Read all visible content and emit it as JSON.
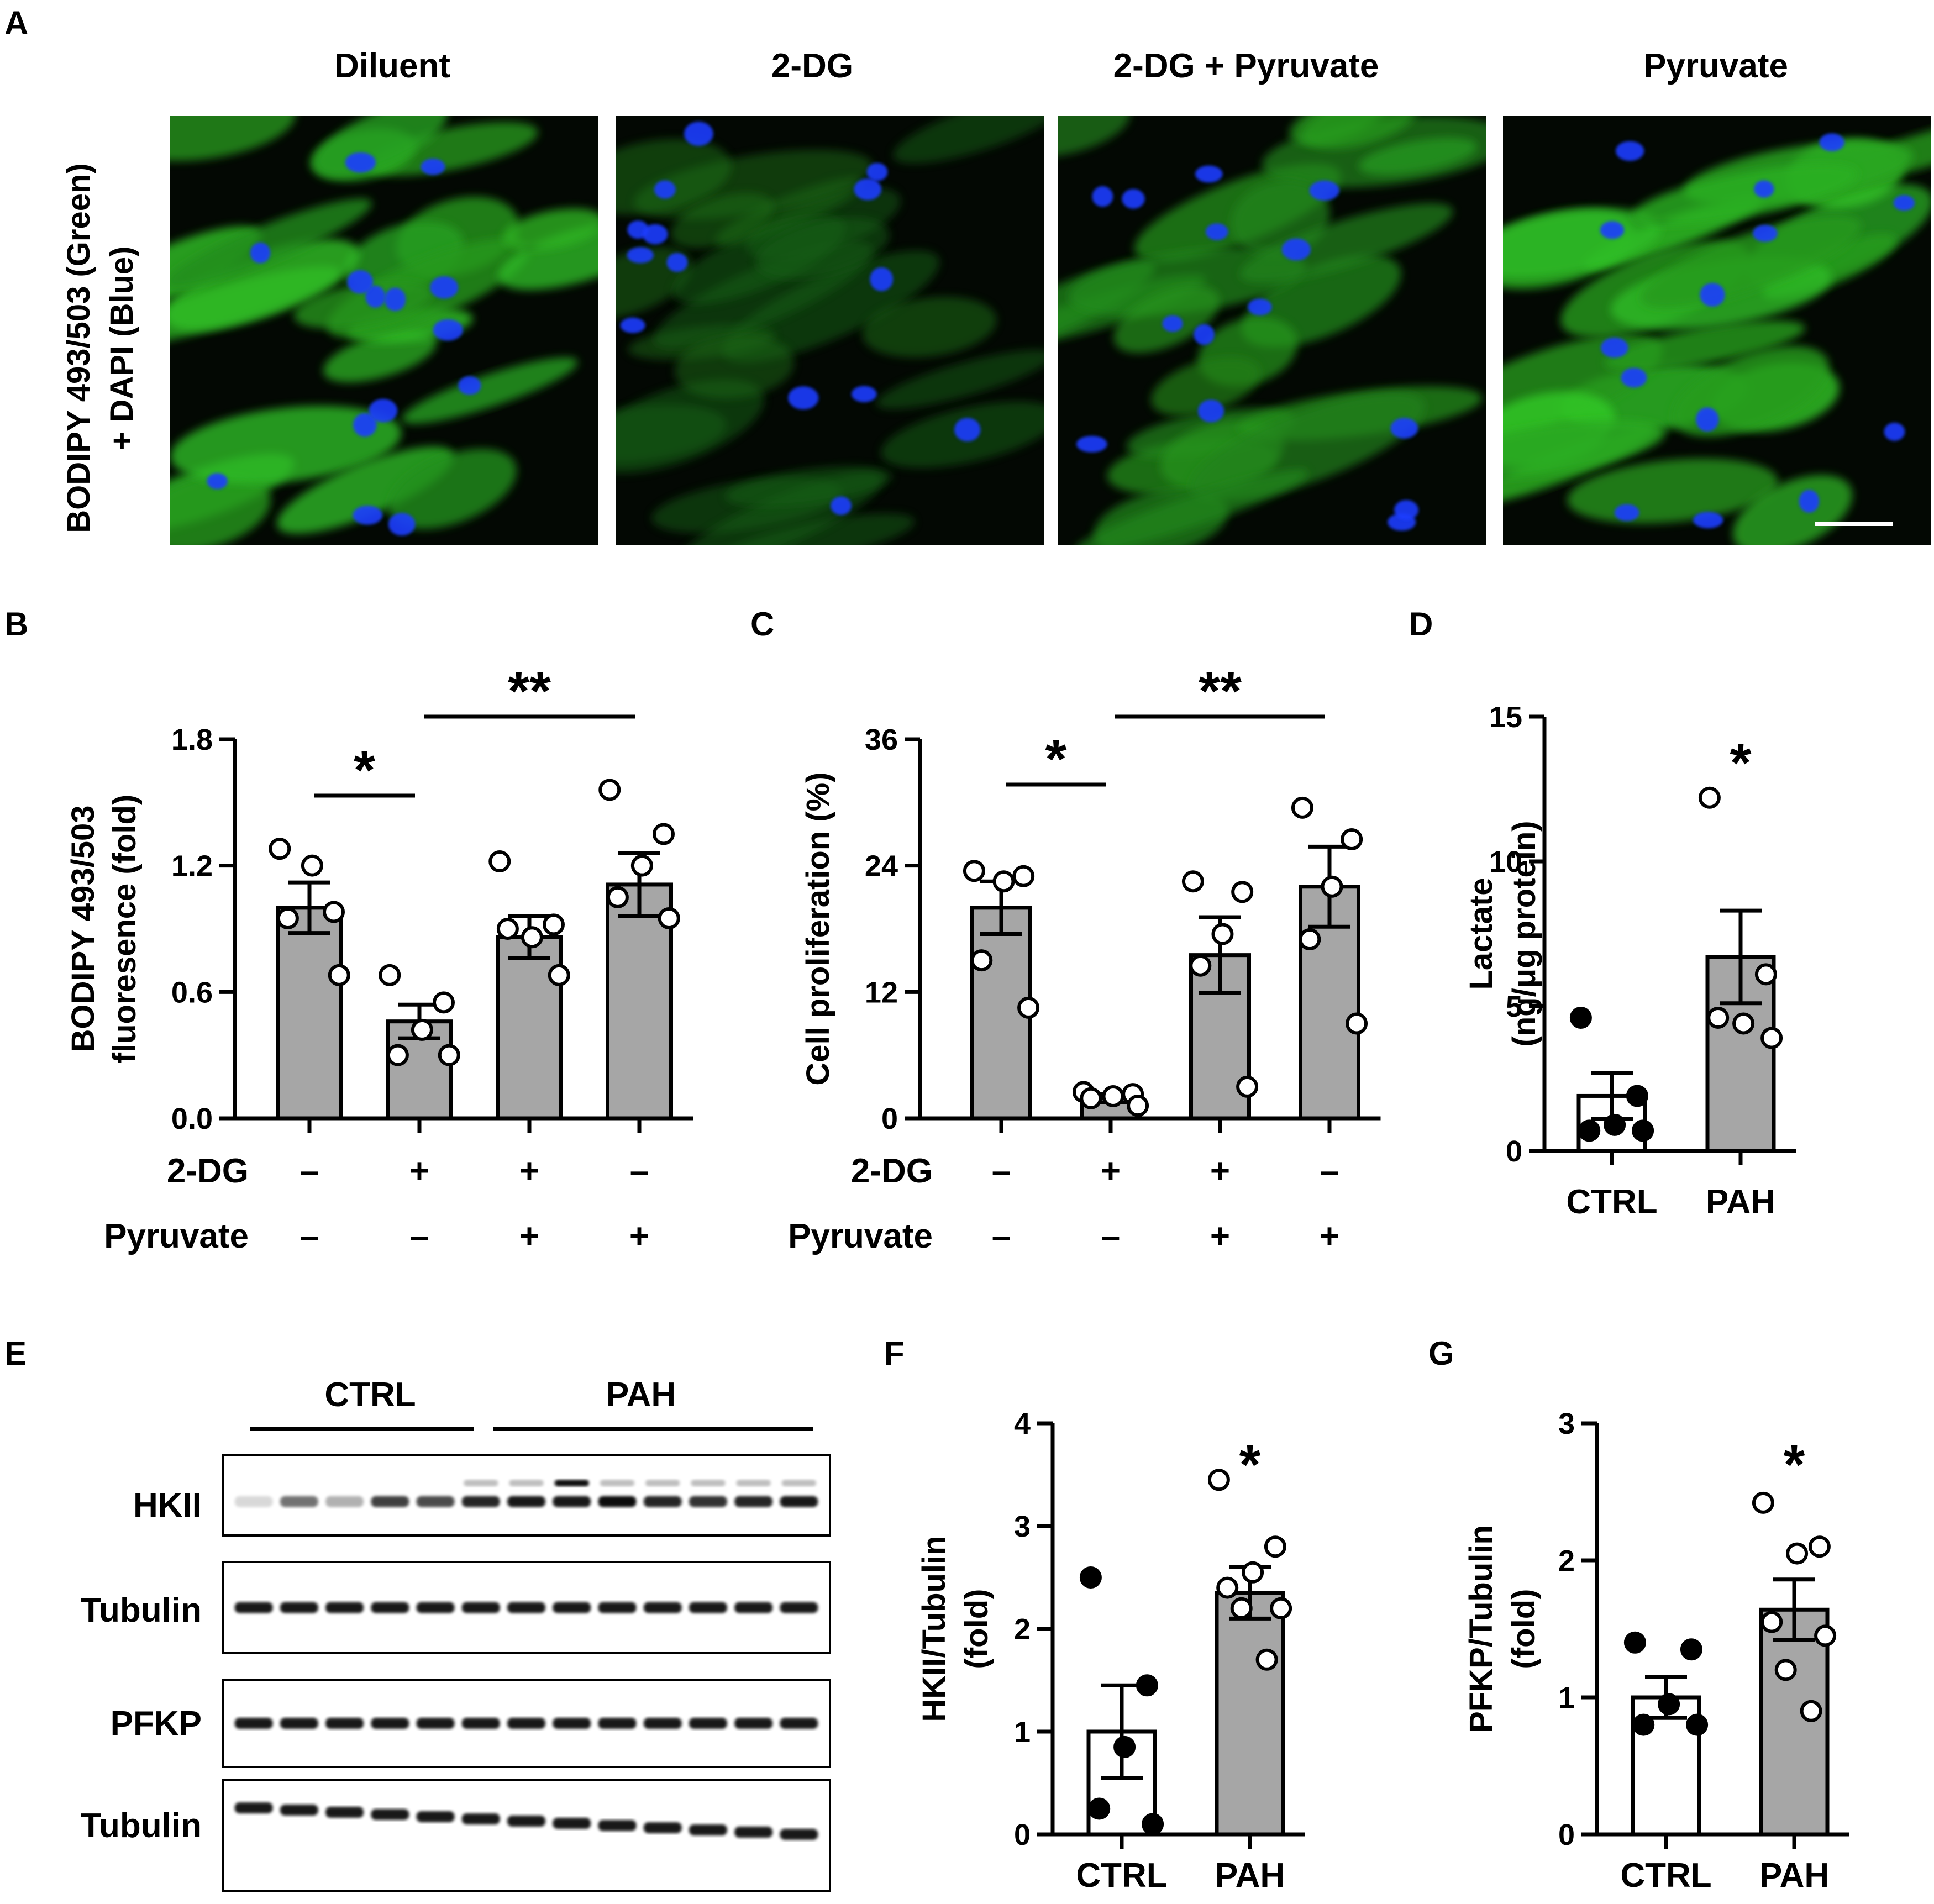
{
  "panel_a": {
    "letter": "A",
    "y_label_line1": "BODIPY 493/503 (Green)",
    "y_label_line2": "+ DAPI (Blue)",
    "images": [
      {
        "title": "Diluent",
        "stain_level": 0.9
      },
      {
        "title": "2-DG",
        "stain_level": 0.35
      },
      {
        "title": "2-DG + Pyruvate",
        "stain_level": 0.7
      },
      {
        "title": "Pyruvate",
        "stain_level": 0.95
      }
    ]
  },
  "panel_e": {
    "letter": "E",
    "group_labels": [
      "CTRL",
      "PAH"
    ],
    "lanes": {
      "CTRL": 5,
      "PAH": 8
    },
    "blots": [
      "HKII",
      "Tubulin",
      "PFKP",
      "Tubulin"
    ]
  },
  "chart_data": [
    {
      "panel": "B",
      "type": "bar",
      "ylabel_line1": "BODIPY 493/503",
      "ylabel_line2": "fluoresence (fold)",
      "ylim": [
        0,
        1.8
      ],
      "yticks": [
        0.0,
        0.6,
        1.2,
        1.8
      ],
      "ytick_labels": [
        "0.0",
        "0.6",
        "1.2",
        "1.8"
      ],
      "categories": [
        "Diluent",
        "2-DG",
        "2-DG + Pyruvate",
        "Pyruvate"
      ],
      "factors": [
        {
          "name": "2-DG",
          "levels": [
            "–",
            "+",
            "+",
            "–"
          ]
        },
        {
          "name": "Pyruvate",
          "levels": [
            "–",
            "–",
            "+",
            "+"
          ]
        }
      ],
      "values": [
        1.0,
        0.46,
        0.86,
        1.11
      ],
      "sem": [
        0.12,
        0.08,
        0.1,
        0.15
      ],
      "points": [
        [
          1.28,
          0.98,
          1.2,
          0.95,
          0.68
        ],
        [
          0.68,
          0.55,
          0.42,
          0.3,
          0.3
        ],
        [
          1.22,
          0.92,
          0.86,
          0.9,
          0.68
        ],
        [
          1.56,
          1.35,
          1.2,
          1.05,
          0.95
        ]
      ],
      "bar_fill": [
        "#a6a6a6",
        "#a6a6a6",
        "#a6a6a6",
        "#a6a6a6"
      ],
      "point_fill": [
        "#ffffff",
        "#ffffff",
        "#ffffff",
        "#ffffff"
      ],
      "significance": [
        {
          "from": 0,
          "to": 1,
          "label": "*"
        },
        {
          "from": 1,
          "to": 3,
          "label": "**"
        }
      ]
    },
    {
      "panel": "C",
      "type": "bar",
      "ylabel_line1": "Cell proliferation (%)",
      "ylabel_line2": "",
      "ylim": [
        0,
        36
      ],
      "yticks": [
        0,
        12,
        24,
        36
      ],
      "ytick_labels": [
        "0",
        "12",
        "24",
        "36"
      ],
      "categories": [
        "Diluent",
        "2-DG",
        "2-DG + Pyruvate",
        "Pyruvate"
      ],
      "factors": [
        {
          "name": "2-DG",
          "levels": [
            "–",
            "+",
            "+",
            "–"
          ]
        },
        {
          "name": "Pyruvate",
          "levels": [
            "–",
            "–",
            "+",
            "+"
          ]
        }
      ],
      "values": [
        20.0,
        1.9,
        15.5,
        22.0
      ],
      "sem": [
        2.5,
        0.4,
        3.6,
        3.8
      ],
      "points": [
        [
          23.5,
          23.0,
          22.5,
          15.0,
          10.5
        ],
        [
          2.5,
          2.3,
          2.1,
          1.9,
          1.2
        ],
        [
          22.5,
          21.5,
          17.5,
          14.5,
          3.0
        ],
        [
          29.5,
          26.5,
          22.0,
          17.0,
          9.0
        ]
      ],
      "bar_fill": [
        "#a6a6a6",
        "#a6a6a6",
        "#a6a6a6",
        "#a6a6a6"
      ],
      "point_fill": [
        "#ffffff",
        "#ffffff",
        "#ffffff",
        "#ffffff"
      ],
      "significance": [
        {
          "from": 0,
          "to": 1,
          "label": "*"
        },
        {
          "from": 1,
          "to": 3,
          "label": "**"
        }
      ]
    },
    {
      "panel": "D",
      "type": "bar",
      "ylabel_line1": "Lactate",
      "ylabel_line2": "(ng/μg protein)",
      "ylim": [
        0,
        15
      ],
      "yticks": [
        0,
        5,
        10,
        15
      ],
      "ytick_labels": [
        "0",
        "5",
        "10",
        "15"
      ],
      "categories": [
        "CTRL",
        "PAH"
      ],
      "values": [
        1.9,
        6.7
      ],
      "sem": [
        0.8,
        1.6
      ],
      "points": [
        [
          4.6,
          1.9,
          0.9,
          0.7,
          0.7
        ],
        [
          12.2,
          6.1,
          4.4,
          4.6,
          3.9
        ]
      ],
      "bar_fill": [
        "#ffffff",
        "#a6a6a6"
      ],
      "point_fill": [
        "#000000",
        "#ffffff"
      ],
      "significance": [
        {
          "over": 1,
          "label": "*"
        }
      ]
    },
    {
      "panel": "F",
      "type": "bar",
      "ylabel_line1": "HKII/Tubulin",
      "ylabel_line2": "(fold)",
      "ylim": [
        0,
        4
      ],
      "yticks": [
        0,
        1,
        2,
        3,
        4
      ],
      "ytick_labels": [
        "0",
        "1",
        "2",
        "3",
        "4"
      ],
      "categories": [
        "CTRL",
        "PAH"
      ],
      "values": [
        1.0,
        2.35
      ],
      "sem": [
        0.45,
        0.25
      ],
      "points": [
        [
          2.5,
          1.45,
          0.85,
          0.25,
          0.1
        ],
        [
          3.45,
          2.8,
          2.55,
          2.4,
          2.2,
          2.2,
          1.7
        ]
      ],
      "bar_fill": [
        "#ffffff",
        "#a6a6a6"
      ],
      "point_fill": [
        "#000000",
        "#ffffff"
      ],
      "significance": [
        {
          "over": 1,
          "label": "*"
        }
      ]
    },
    {
      "panel": "G",
      "type": "bar",
      "ylabel_line1": "PFKP/Tubulin",
      "ylabel_line2": "(fold)",
      "ylim": [
        0,
        3
      ],
      "yticks": [
        0,
        1,
        2,
        3
      ],
      "ytick_labels": [
        "0",
        "1",
        "2",
        "3"
      ],
      "categories": [
        "CTRL",
        "PAH"
      ],
      "values": [
        1.0,
        1.64
      ],
      "sem": [
        0.15,
        0.22
      ],
      "points": [
        [
          1.4,
          1.35,
          0.95,
          0.8,
          0.8
        ],
        [
          2.42,
          2.1,
          2.05,
          1.55,
          1.45,
          1.2,
          0.9
        ]
      ],
      "bar_fill": [
        "#ffffff",
        "#a6a6a6"
      ],
      "point_fill": [
        "#000000",
        "#ffffff"
      ],
      "significance": [
        {
          "over": 1,
          "label": "*"
        }
      ]
    }
  ]
}
